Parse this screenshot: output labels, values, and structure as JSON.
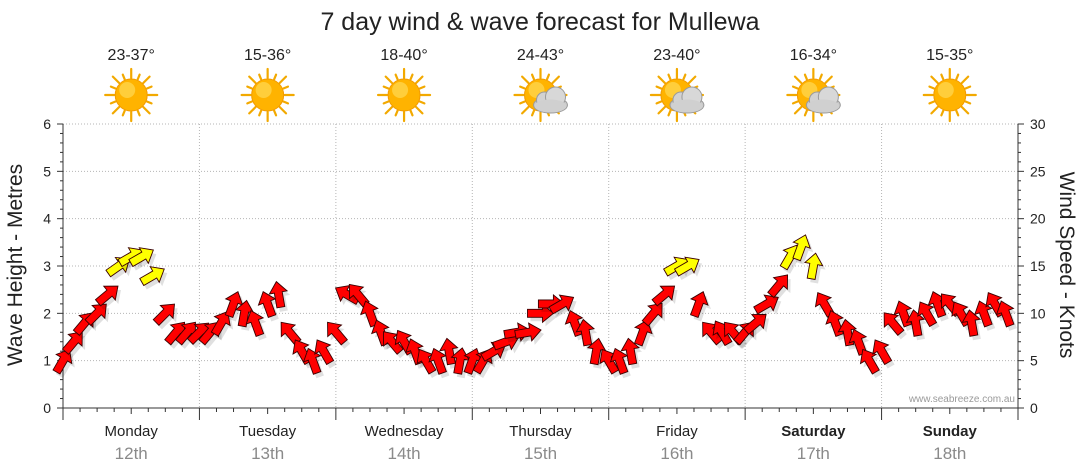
{
  "chart_data": {
    "type": "line",
    "title": "7 day wind & wave forecast for Mullewa",
    "ylabel_left": "Wave Height - Metres",
    "ylabel_right": "Wind Speed - Knots",
    "ylim_left": [
      0,
      6
    ],
    "ylim_right": [
      0,
      30
    ],
    "yticks_left": [
      "0",
      "1",
      "2",
      "3",
      "4",
      "5",
      "6"
    ],
    "yticks_right": [
      "0",
      "5",
      "10",
      "15",
      "20",
      "25",
      "30"
    ],
    "grid": true,
    "watermark": "www.seabreeze.com.au",
    "days": [
      {
        "name": "Monday",
        "date": "12th",
        "temp": "23-37°",
        "icon": "sun-icon",
        "bold": false
      },
      {
        "name": "Tuesday",
        "date": "13th",
        "temp": "15-36°",
        "icon": "sun-icon",
        "bold": false
      },
      {
        "name": "Wednesday",
        "date": "14th",
        "temp": "18-40°",
        "icon": "sun-icon",
        "bold": false
      },
      {
        "name": "Thursday",
        "date": "15th",
        "temp": "24-43°",
        "icon": "sun-cloud-icon",
        "bold": false
      },
      {
        "name": "Friday",
        "date": "16th",
        "temp": "23-40°",
        "icon": "sun-cloud-icon",
        "bold": false
      },
      {
        "name": "Saturday",
        "date": "17th",
        "temp": "16-34°",
        "icon": "sun-cloud-icon",
        "bold": true
      },
      {
        "name": "Sunday",
        "date": "18th",
        "temp": "15-35°",
        "icon": "sun-icon",
        "bold": true
      }
    ],
    "wind_series": {
      "x_unit": "day index (0 = Monday 00:00)",
      "x": [
        0.0,
        0.08,
        0.16,
        0.25,
        0.33,
        0.41,
        0.5,
        0.58,
        0.66,
        0.75,
        0.83,
        0.91,
        1.0,
        1.08,
        1.16,
        1.25,
        1.33,
        1.41,
        1.5,
        1.58,
        1.66,
        1.75,
        1.83,
        1.91,
        2.0,
        2.08,
        2.16,
        2.25,
        2.33,
        2.41,
        2.5,
        2.58,
        2.66,
        2.75,
        2.83,
        2.91,
        3.0,
        3.08,
        3.16,
        3.25,
        3.33,
        3.41,
        3.5,
        3.58,
        3.66,
        3.75,
        3.83,
        3.91,
        4.0,
        4.08,
        4.16,
        4.25,
        4.33,
        4.41,
        4.5,
        4.58,
        4.66,
        4.75,
        4.83,
        4.91,
        5.0,
        5.08,
        5.16,
        5.25,
        5.33,
        5.41,
        5.5,
        5.58,
        5.66,
        5.75,
        5.83,
        5.91,
        6.0,
        6.08,
        6.16,
        6.25,
        6.33,
        6.41,
        6.5,
        6.58,
        6.66,
        6.75,
        6.83,
        6.91
      ],
      "knots": [
        5,
        7,
        9,
        10,
        12,
        15,
        16,
        16,
        14,
        10,
        8,
        8,
        8,
        8,
        9,
        11,
        10,
        9,
        11,
        12,
        8,
        6,
        5,
        6,
        8,
        12,
        12,
        10,
        8,
        7,
        7,
        6,
        5,
        5,
        6,
        5,
        5,
        5,
        6,
        7,
        8,
        8,
        10,
        11,
        11,
        9,
        8,
        6,
        5,
        5,
        6,
        8,
        10,
        12,
        15,
        15,
        11,
        8,
        8,
        8,
        8,
        9,
        11,
        13,
        16,
        17,
        15,
        11,
        9,
        8,
        7,
        5,
        6,
        9,
        10,
        9,
        10,
        11,
        11,
        10,
        9,
        10,
        11,
        10
      ],
      "direction_deg": [
        30,
        40,
        40,
        45,
        50,
        55,
        60,
        60,
        60,
        45,
        40,
        40,
        45,
        40,
        30,
        20,
        10,
        340,
        340,
        350,
        320,
        330,
        340,
        330,
        320,
        300,
        320,
        340,
        340,
        320,
        330,
        340,
        330,
        340,
        350,
        10,
        20,
        30,
        60,
        70,
        80,
        80,
        90,
        90,
        60,
        340,
        350,
        10,
        330,
        340,
        350,
        20,
        40,
        50,
        60,
        60,
        20,
        320,
        330,
        320,
        40,
        50,
        60,
        40,
        30,
        20,
        10,
        330,
        340,
        350,
        340,
        330,
        330,
        320,
        340,
        350,
        330,
        340,
        320,
        330,
        350,
        340,
        330,
        340
      ],
      "color_legend": {
        "calm": "#ff0000",
        "strong": "#ffff00"
      }
    }
  }
}
